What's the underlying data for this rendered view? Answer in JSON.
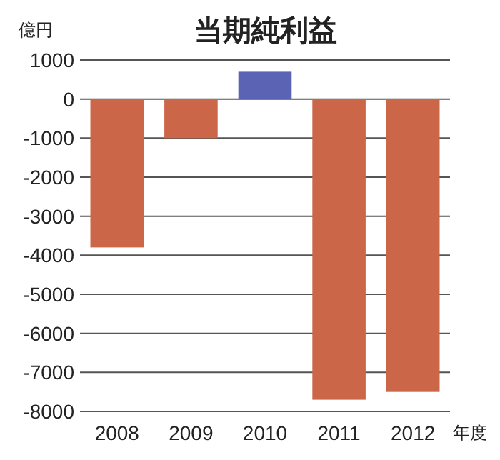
{
  "chart_data": {
    "type": "bar",
    "title": "当期純利益",
    "ylabel": "億円",
    "xlabel": "年度",
    "categories": [
      "2008",
      "2009",
      "2010",
      "2011",
      "2012"
    ],
    "values": [
      -3800,
      -1000,
      700,
      -7700,
      -7500
    ],
    "colors": [
      "#cc6649",
      "#cc6649",
      "#5b63b5",
      "#cc6649",
      "#cc6649"
    ],
    "ylim": [
      -8000,
      1000
    ],
    "yticks": [
      1000,
      0,
      -1000,
      -2000,
      -3000,
      -4000,
      -5000,
      -6000,
      -7000,
      -8000
    ],
    "grid": "y"
  }
}
